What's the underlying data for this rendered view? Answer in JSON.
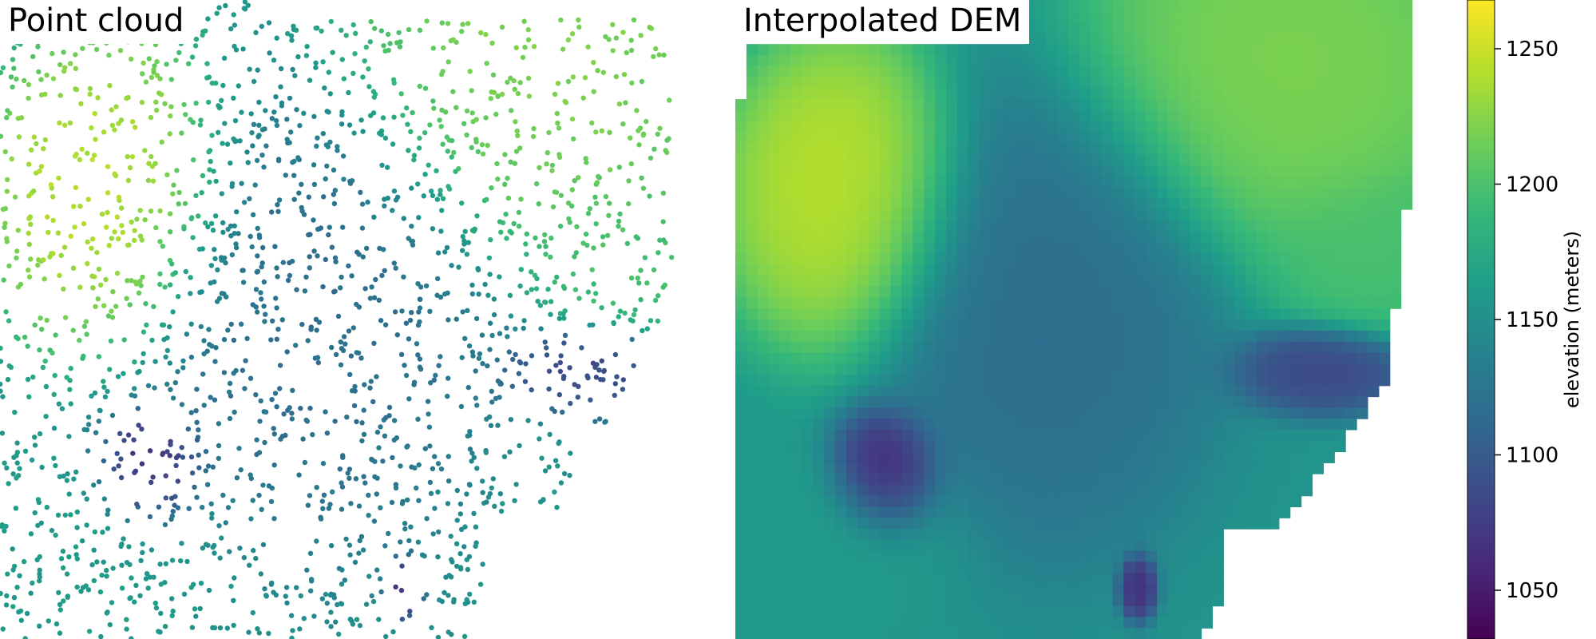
{
  "chart_data": [
    {
      "type": "scatter",
      "title": "Point cloud",
      "xlabel": "",
      "ylabel": "",
      "axes": "off",
      "colormap": "viridis",
      "color_range": [
        1032,
        1268
      ],
      "regions": [
        {
          "cx": 0.15,
          "cy": 0.3,
          "rx": 0.2,
          "ry": 0.3,
          "elevation": 1250
        },
        {
          "cx": 0.75,
          "cy": 0.1,
          "rx": 0.35,
          "ry": 0.35,
          "elevation": 1225
        },
        {
          "cx": 0.88,
          "cy": 0.4,
          "rx": 0.18,
          "ry": 0.15,
          "elevation": 1200
        },
        {
          "cx": 0.42,
          "cy": 0.48,
          "rx": 0.28,
          "ry": 0.45,
          "elevation": 1115
        },
        {
          "cx": 0.8,
          "cy": 0.58,
          "rx": 0.14,
          "ry": 0.08,
          "elevation": 1080
        },
        {
          "cx": 0.2,
          "cy": 0.74,
          "rx": 0.09,
          "ry": 0.12,
          "elevation": 1045
        },
        {
          "cx": 0.55,
          "cy": 0.92,
          "rx": 0.03,
          "ry": 0.06,
          "elevation": 1060
        },
        {
          "cx": 0.1,
          "cy": 0.85,
          "rx": 0.25,
          "ry": 0.2,
          "elevation": 1160
        }
      ],
      "base_elevation": 1155,
      "n_points": 2000
    },
    {
      "type": "heatmap",
      "title": "Interpolated DEM",
      "xlabel": "",
      "ylabel": "",
      "axes": "off",
      "colormap": "viridis",
      "color_range": [
        1032,
        1268
      ],
      "colorbar": {
        "label": "elevation (meters)",
        "ticks": [
          1050,
          1100,
          1150,
          1200,
          1250
        ]
      },
      "regions": [
        {
          "cx": 0.15,
          "cy": 0.3,
          "rx": 0.2,
          "ry": 0.3,
          "elevation": 1250
        },
        {
          "cx": 0.75,
          "cy": 0.1,
          "rx": 0.35,
          "ry": 0.35,
          "elevation": 1225
        },
        {
          "cx": 0.88,
          "cy": 0.4,
          "rx": 0.18,
          "ry": 0.15,
          "elevation": 1200
        },
        {
          "cx": 0.42,
          "cy": 0.48,
          "rx": 0.28,
          "ry": 0.45,
          "elevation": 1115
        },
        {
          "cx": 0.8,
          "cy": 0.58,
          "rx": 0.14,
          "ry": 0.08,
          "elevation": 1080
        },
        {
          "cx": 0.2,
          "cy": 0.74,
          "rx": 0.09,
          "ry": 0.12,
          "elevation": 1045
        },
        {
          "cx": 0.55,
          "cy": 0.92,
          "rx": 0.03,
          "ry": 0.06,
          "elevation": 1060
        },
        {
          "cx": 0.1,
          "cy": 0.85,
          "rx": 0.25,
          "ry": 0.2,
          "elevation": 1160
        }
      ],
      "base_elevation": 1155
    }
  ],
  "titles": {
    "point_cloud": "Point cloud",
    "dem": "Interpolated DEM"
  },
  "colorbar": {
    "label": "elevation (meters)",
    "ticks": [
      "1050",
      "1100",
      "1150",
      "1200",
      "1250"
    ]
  },
  "colors": {
    "background": "#ffffff",
    "viridis_stops": [
      "#440154",
      "#482878",
      "#3e4a89",
      "#31688e",
      "#26828e",
      "#1f9e89",
      "#35b779",
      "#6ece58",
      "#b5de2b",
      "#fde725"
    ]
  }
}
